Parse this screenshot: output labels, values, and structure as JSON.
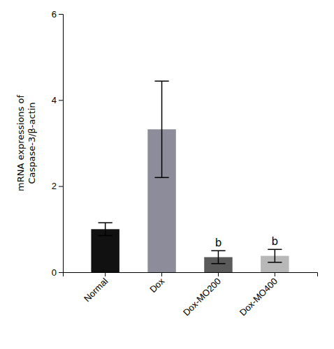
{
  "chart_data": {
    "type": "bar",
    "categories": [
      "Normal",
      "Dox",
      "Dox-MO200",
      "Dox-MO400"
    ],
    "values": [
      1.0,
      3.32,
      0.35,
      0.38
    ],
    "errors": [
      0.15,
      1.12,
      0.15,
      0.15
    ],
    "colors": [
      "#111111",
      "#8c8c9a",
      "#5a5a5a",
      "#b8b8b8"
    ],
    "annotations": [
      null,
      null,
      "b",
      "b"
    ],
    "ylabel": "mRNA expressions of\nCaspase-3/β-actin",
    "ylim": [
      0,
      6
    ],
    "yticks": [
      0,
      2,
      4,
      6
    ],
    "grid": false
  }
}
